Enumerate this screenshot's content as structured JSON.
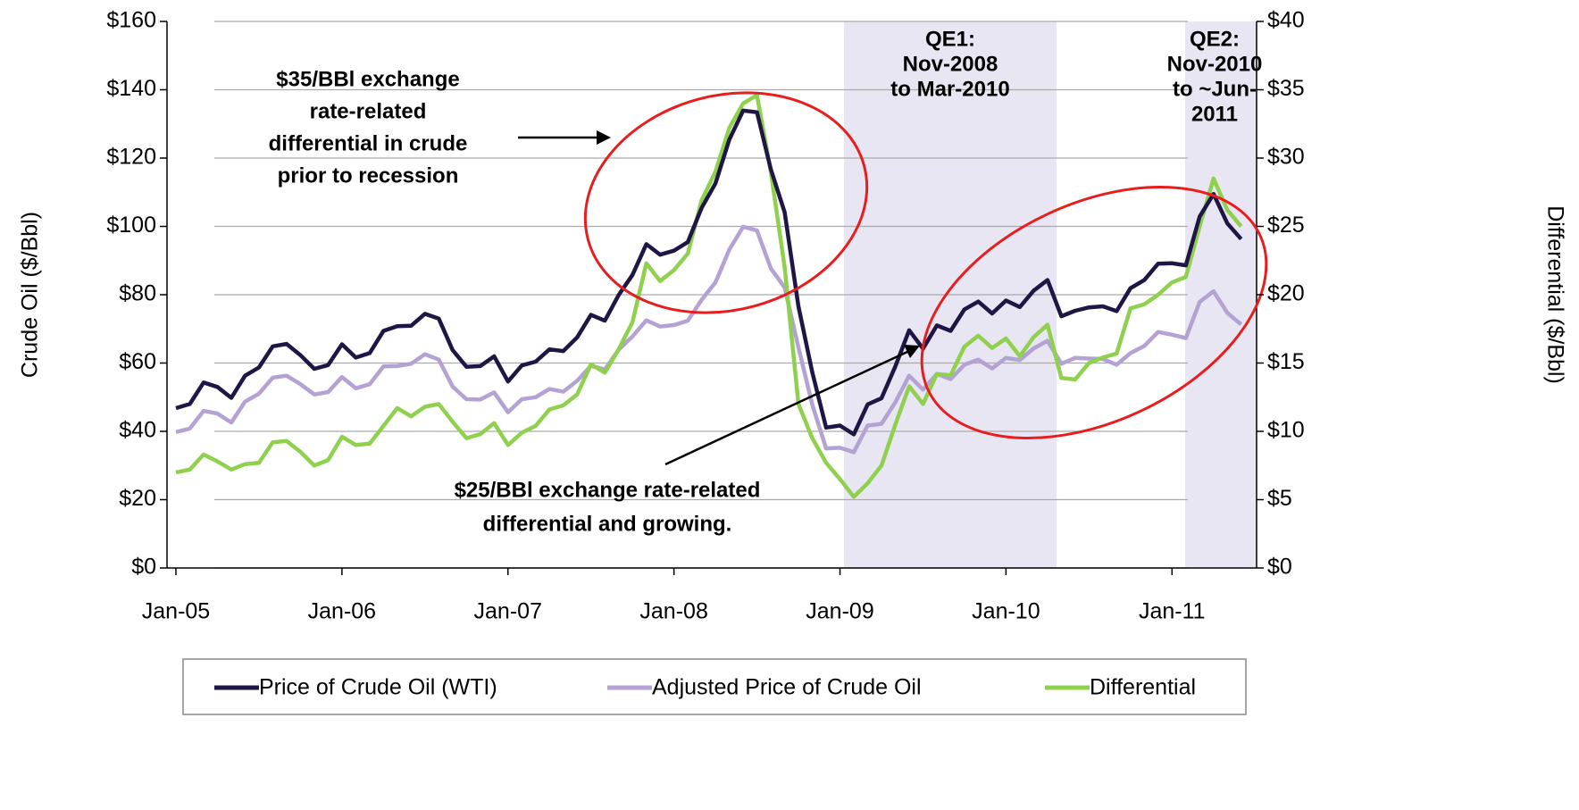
{
  "chart_data": {
    "type": "line",
    "ylabel": "Crude Oil ($/Bbl)",
    "y2label": "Differential ($/Bbl)",
    "categories": [
      "Jan-05",
      null,
      null,
      null,
      null,
      null,
      null,
      null,
      null,
      null,
      null,
      null,
      "Jan-06",
      null,
      null,
      null,
      null,
      null,
      null,
      null,
      null,
      null,
      null,
      null,
      "Jan-07",
      null,
      null,
      null,
      null,
      null,
      null,
      null,
      null,
      null,
      null,
      null,
      "Jan-08",
      null,
      null,
      null,
      null,
      null,
      null,
      null,
      null,
      null,
      null,
      null,
      "Jan-09",
      null,
      null,
      null,
      null,
      null,
      null,
      null,
      null,
      null,
      null,
      null,
      "Jan-10",
      null,
      null,
      null,
      null,
      null,
      null,
      null,
      null,
      null,
      null,
      null,
      "Jan-11",
      null,
      null,
      null,
      null,
      null
    ],
    "ylim": [
      0,
      160
    ],
    "yticks": [
      {
        "value": 0,
        "label": "$0"
      },
      {
        "value": 20,
        "label": "$20"
      },
      {
        "value": 40,
        "label": "$40"
      },
      {
        "value": 60,
        "label": "$60"
      },
      {
        "value": 80,
        "label": "$80"
      },
      {
        "value": 100,
        "label": "$100"
      },
      {
        "value": 120,
        "label": "$120"
      },
      {
        "value": 140,
        "label": "$140"
      },
      {
        "value": 160,
        "label": "$160"
      }
    ],
    "y2lim": [
      0,
      40
    ],
    "y2ticks": [
      {
        "value": 0,
        "label": "$0"
      },
      {
        "value": 5,
        "label": "$5"
      },
      {
        "value": 10,
        "label": "$10"
      },
      {
        "value": 15,
        "label": "$15"
      },
      {
        "value": 20,
        "label": "$20"
      },
      {
        "value": 25,
        "label": "$25"
      },
      {
        "value": 30,
        "label": "$30"
      },
      {
        "value": 35,
        "label": "$35"
      },
      {
        "value": 40,
        "label": "$40"
      }
    ],
    "grid": true,
    "series": [
      {
        "name": "Price of Crude Oil (WTI)",
        "color": "#1f1646",
        "values": [
          46.8,
          48,
          54.3,
          53,
          49.8,
          56.3,
          58.7,
          64.9,
          65.6,
          62.3,
          58.3,
          59.4,
          65.5,
          61.6,
          62.9,
          69.4,
          70.8,
          70.9,
          74.4,
          73,
          63.8,
          58.9,
          59.1,
          62,
          54.6,
          59.3,
          60.4,
          64,
          63.5,
          67.5,
          74.1,
          72.4,
          79.9,
          85.8,
          94.8,
          91.7,
          92.9,
          95.4,
          105.4,
          112.6,
          125.4,
          133.9,
          133.4,
          116.7,
          104.1,
          76.6,
          57.3,
          41.1,
          41.7,
          39.1,
          47.9,
          49.7,
          59,
          69.6,
          64.2,
          71,
          69.4,
          75.7,
          78,
          74.5,
          78.3,
          76.4,
          81.2,
          84.3,
          73.7,
          75.3,
          76.3,
          76.6,
          75.2,
          81.9,
          84.3,
          89.1,
          89.2,
          88.6,
          102.9,
          109.5,
          100.9,
          96.3
        ]
      },
      {
        "name": "Adjusted Price of Crude Oil",
        "color": "#b3a2d3",
        "values": [
          39.8,
          40.8,
          46,
          45.2,
          42.6,
          48.7,
          51,
          55.7,
          56.3,
          53.8,
          50.8,
          51.5,
          55.9,
          52.6,
          53.8,
          59,
          59.1,
          59.8,
          62.6,
          61,
          53.1,
          49.4,
          49.3,
          51.4,
          45.6,
          49.4,
          50,
          52.4,
          51.6,
          54.8,
          59.2,
          58.1,
          63.9,
          67.8,
          72.5,
          70.7,
          71.1,
          72.4,
          78.5,
          83.6,
          93.2,
          99.9,
          98.8,
          87.7,
          82.1,
          64.6,
          47.8,
          35,
          35.2,
          33.9,
          41.7,
          42.2,
          48.5,
          56.3,
          52.2,
          56.8,
          55.3,
          59.5,
          61,
          58.4,
          61.5,
          60.9,
          64.3,
          66.5,
          59.8,
          61.5,
          61.3,
          61.2,
          59.5,
          62.9,
          65,
          69.1,
          68.3,
          67.3,
          77.9,
          81,
          74.7,
          71.3
        ]
      },
      {
        "name": "Differential",
        "color": "#8fd14f",
        "axis": "y2",
        "values": [
          7,
          7.2,
          8.3,
          7.8,
          7.2,
          7.6,
          7.7,
          9.2,
          9.3,
          8.5,
          7.5,
          7.9,
          9.6,
          9,
          9.1,
          10.4,
          11.7,
          11.1,
          11.8,
          12,
          10.7,
          9.5,
          9.8,
          10.6,
          9,
          9.9,
          10.4,
          11.6,
          11.9,
          12.7,
          14.9,
          14.3,
          16,
          18,
          22.3,
          21,
          21.8,
          23,
          26.9,
          29,
          32.2,
          34,
          34.6,
          29,
          22,
          12,
          9.5,
          7.7,
          6.5,
          5.2,
          6.2,
          7.5,
          10.5,
          13.3,
          12,
          14.2,
          14.1,
          16.2,
          17,
          16.1,
          16.8,
          15.5,
          16.9,
          17.8,
          13.9,
          13.8,
          15,
          15.4,
          15.7,
          19,
          19.3,
          20,
          20.9,
          21.3,
          25,
          28.5,
          26.2,
          25
        ]
      }
    ],
    "annotations": [
      {
        "lines": [
          "$35/BBl exchange",
          "rate-related",
          "differential in crude",
          "prior to recession"
        ]
      },
      {
        "lines": [
          "$25/BBl exchange rate-related",
          "differential and growing."
        ]
      },
      {
        "lines": [
          "QE1:",
          "Nov-2008",
          "to Mar-2010"
        ]
      },
      {
        "lines": [
          "QE2:",
          "Nov-2010",
          "to ~Jun-",
          "2011"
        ]
      }
    ],
    "legend": "bottom"
  }
}
